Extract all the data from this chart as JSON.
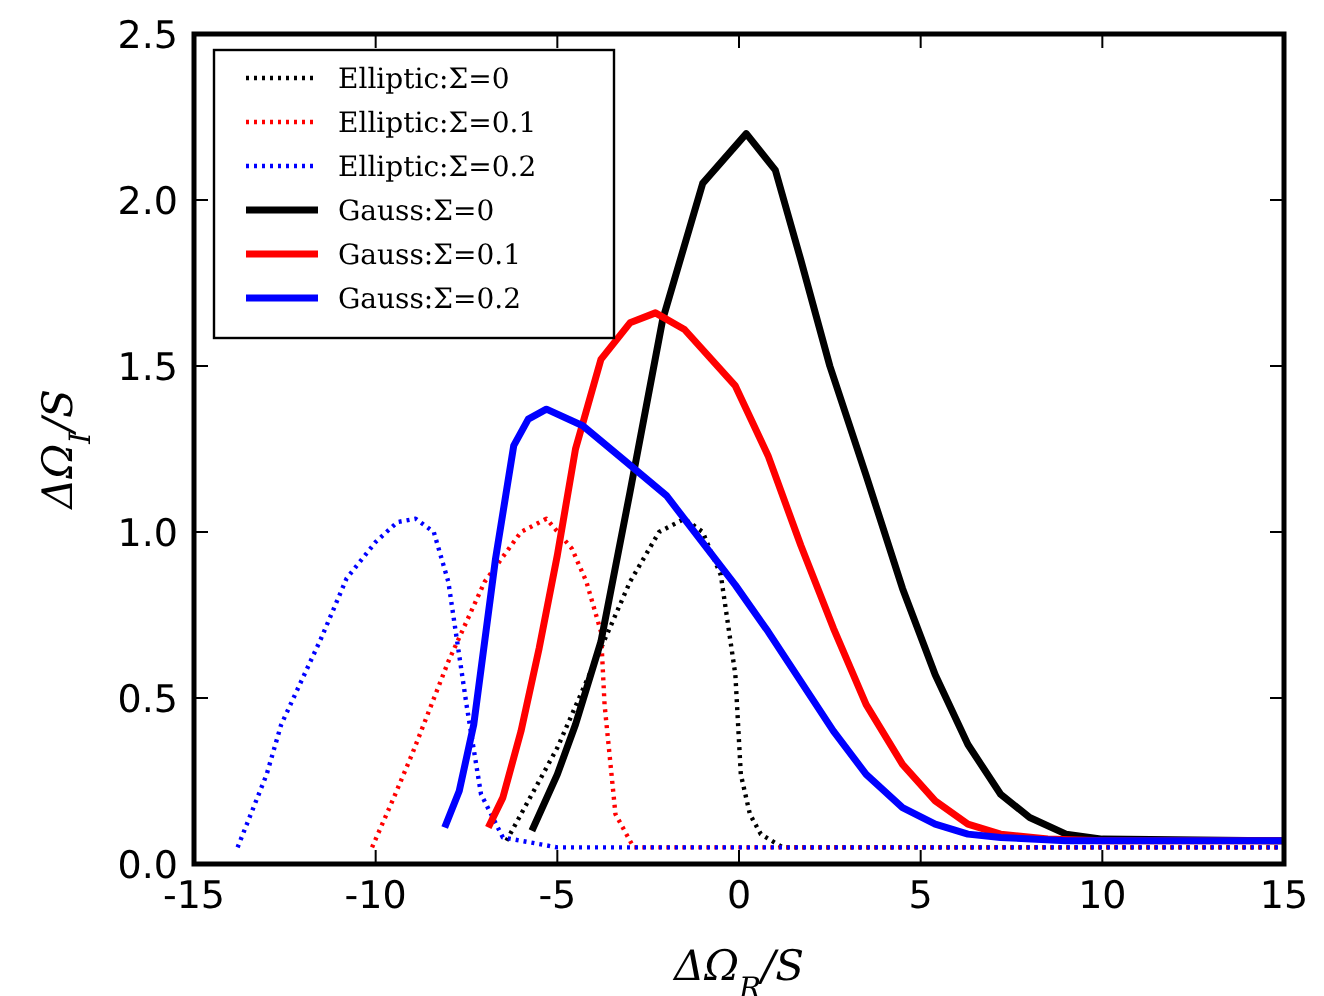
{
  "chart_data": {
    "type": "line",
    "xlabel": "ΔΩ$_{R}$/S",
    "ylabel": "ΔΩ$_{I}$/S",
    "xlim": [
      -15,
      15
    ],
    "ylim": [
      0,
      2.5
    ],
    "xticks": [
      -15,
      -10,
      -5,
      0,
      5,
      10,
      15
    ],
    "yticks": [
      {
        "value": 0,
        "label": "0.0"
      },
      0.5,
      {
        "value": 1,
        "label": "1.0"
      },
      1.5,
      {
        "value": 2,
        "label": "2.0"
      },
      2.5
    ],
    "grid": false,
    "legend": "top left",
    "series": [
      {
        "name": "Elliptic:Σ=0",
        "color": "#000000",
        "line_style": "dotted",
        "x": [
          -6.4,
          -6,
          -5,
          -4,
          -3,
          -2.2,
          -1.5,
          -1,
          -0.5,
          -0.1,
          0.05,
          0.3,
          0.6,
          1.2,
          5,
          10,
          15
        ],
        "values": [
          0.07,
          0.15,
          0.35,
          0.6,
          0.85,
          1.0,
          1.04,
          1.0,
          0.87,
          0.57,
          0.27,
          0.15,
          0.09,
          0.05,
          0.05,
          0.05,
          0.05
        ]
      },
      {
        "name": "Elliptic:Σ=0.1",
        "color": "#ff0000",
        "line_style": "dotted",
        "x": [
          -10.1,
          -9.5,
          -9,
          -8,
          -7,
          -6,
          -5.3,
          -4.6,
          -4.2,
          -3.8,
          -3.7,
          -3.4,
          -2.9,
          0,
          5,
          10,
          15
        ],
        "values": [
          0.05,
          0.2,
          0.33,
          0.61,
          0.85,
          1.0,
          1.04,
          0.95,
          0.85,
          0.7,
          0.48,
          0.15,
          0.05,
          0.05,
          0.05,
          0.05,
          0.05
        ]
      },
      {
        "name": "Elliptic:Σ=0.2",
        "color": "#0000ff",
        "line_style": "dotted",
        "x": [
          -13.8,
          -13,
          -12.6,
          -11.5,
          -10.8,
          -10,
          -9.4,
          -8.9,
          -8.4,
          -8,
          -7.5,
          -7.1,
          -6.5,
          -5,
          0,
          5,
          10,
          15
        ],
        "values": [
          0.05,
          0.27,
          0.42,
          0.68,
          0.86,
          0.97,
          1.03,
          1.04,
          1.0,
          0.85,
          0.48,
          0.21,
          0.08,
          0.05,
          0.05,
          0.05,
          0.05,
          0.05
        ]
      },
      {
        "name": "Gauss:Σ=0",
        "color": "#000000",
        "line_style": "solid",
        "x": [
          -5.7,
          -5,
          -4.5,
          -3.8,
          -3,
          -2.1,
          -1,
          0.2,
          1,
          1.7,
          2.5,
          3.5,
          4.5,
          5.4,
          6.3,
          7.2,
          8,
          9,
          10,
          15
        ],
        "values": [
          0.1,
          0.27,
          0.42,
          0.67,
          1.12,
          1.64,
          2.05,
          2.2,
          2.09,
          1.82,
          1.5,
          1.17,
          0.83,
          0.57,
          0.36,
          0.21,
          0.14,
          0.09,
          0.075,
          0.07
        ]
      },
      {
        "name": "Gauss:Σ=0.1",
        "color": "#ff0000",
        "line_style": "solid",
        "x": [
          -6.9,
          -6.5,
          -6,
          -5.5,
          -5,
          -4.5,
          -3.8,
          -3,
          -2.3,
          -1.5,
          -0.1,
          0.8,
          1.7,
          2.6,
          3.5,
          4.5,
          5.4,
          6.3,
          7.2,
          8.5,
          10,
          15
        ],
        "values": [
          0.11,
          0.2,
          0.4,
          0.65,
          0.93,
          1.25,
          1.52,
          1.63,
          1.66,
          1.61,
          1.44,
          1.23,
          0.96,
          0.71,
          0.48,
          0.3,
          0.19,
          0.12,
          0.09,
          0.075,
          0.07,
          0.07
        ]
      },
      {
        "name": "Gauss:Σ=0.2",
        "color": "#0000ff",
        "line_style": "solid",
        "x": [
          -8.1,
          -7.7,
          -7.3,
          -6.7,
          -6.2,
          -5.8,
          -5.3,
          -4.3,
          -3.2,
          -2,
          -0.1,
          0.8,
          1.7,
          2.6,
          3.5,
          4.5,
          5.4,
          6.3,
          7.2,
          9,
          15
        ],
        "values": [
          0.11,
          0.22,
          0.42,
          0.92,
          1.26,
          1.34,
          1.37,
          1.32,
          1.22,
          1.11,
          0.84,
          0.7,
          0.55,
          0.4,
          0.27,
          0.17,
          0.12,
          0.09,
          0.08,
          0.07,
          0.07
        ]
      }
    ]
  }
}
